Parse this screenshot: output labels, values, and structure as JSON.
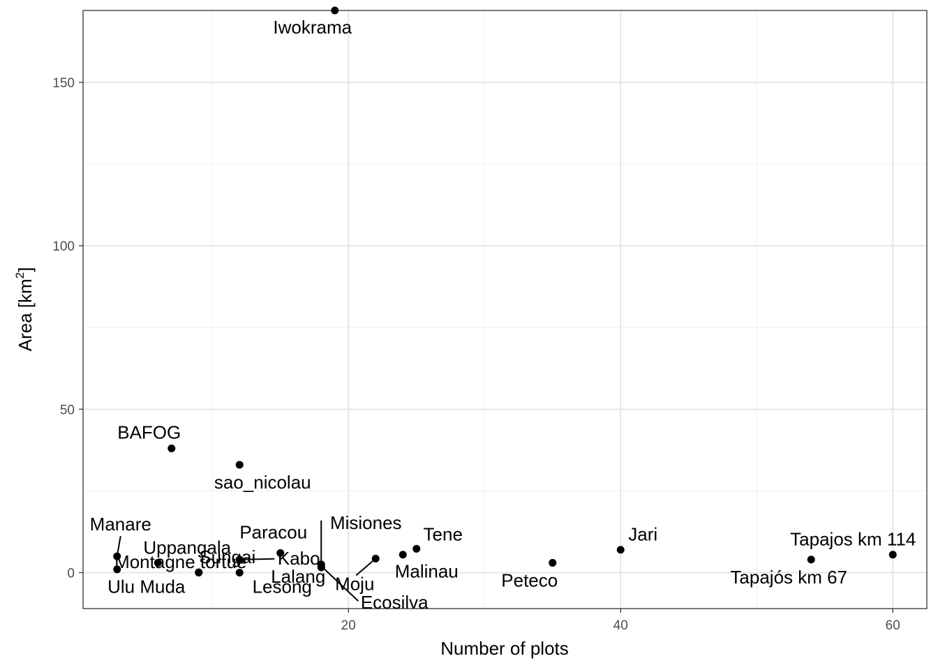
{
  "chart_data": {
    "type": "scatter",
    "xlabel": "Number of plots",
    "ylabel": "Area [km",
    "ylabel_superscript": "2",
    "ylabel_suffix": "]",
    "x_ticks": [
      "20",
      "40",
      "60"
    ],
    "y_ticks": [
      "0",
      "50",
      "100",
      "150"
    ],
    "xlim": [
      0.5,
      62.5
    ],
    "ylim": [
      -11,
      172
    ],
    "grid": true,
    "points": [
      {
        "label": "Iwokrama",
        "x": 19,
        "y": 172
      },
      {
        "label": "BAFOG",
        "x": 7,
        "y": 38
      },
      {
        "label": "sao_nicolau",
        "x": 12,
        "y": 33
      },
      {
        "label": "Manare",
        "x": 3,
        "y": 5
      },
      {
        "label": "Uppangala",
        "x": 6,
        "y": 3
      },
      {
        "label": "Kabo",
        "x": 12,
        "y": 4
      },
      {
        "label": "Paracou",
        "x": 15,
        "y": 6
      },
      {
        "label": "Misiones",
        "x": 18,
        "y": 2.5
      },
      {
        "label": "Lalang",
        "x": 18,
        "y": 1.6
      },
      {
        "label": "Ecosilva",
        "x": 18,
        "y": 2
      },
      {
        "label": "Moju",
        "x": 22,
        "y": 4.3
      },
      {
        "label": "Malinau",
        "x": 24,
        "y": 5.5
      },
      {
        "label": "Tene",
        "x": 25,
        "y": 7.3
      },
      {
        "label": "Peteco",
        "x": 35,
        "y": 3
      },
      {
        "label": "Jari",
        "x": 40,
        "y": 7
      },
      {
        "label": "Tapajós km 67",
        "x": 54,
        "y": 4
      },
      {
        "label": "Tapajos km 114",
        "x": 60,
        "y": 5.5
      },
      {
        "label": "Montagne tortue",
        "x": 3,
        "y": 1
      },
      {
        "label": "Sungai",
        "x": 9,
        "y": 0.1
      },
      {
        "label": "Ulu Muda",
        "x": 9,
        "y": 0
      },
      {
        "label": "Lesong",
        "x": 12,
        "y": 0
      }
    ]
  }
}
